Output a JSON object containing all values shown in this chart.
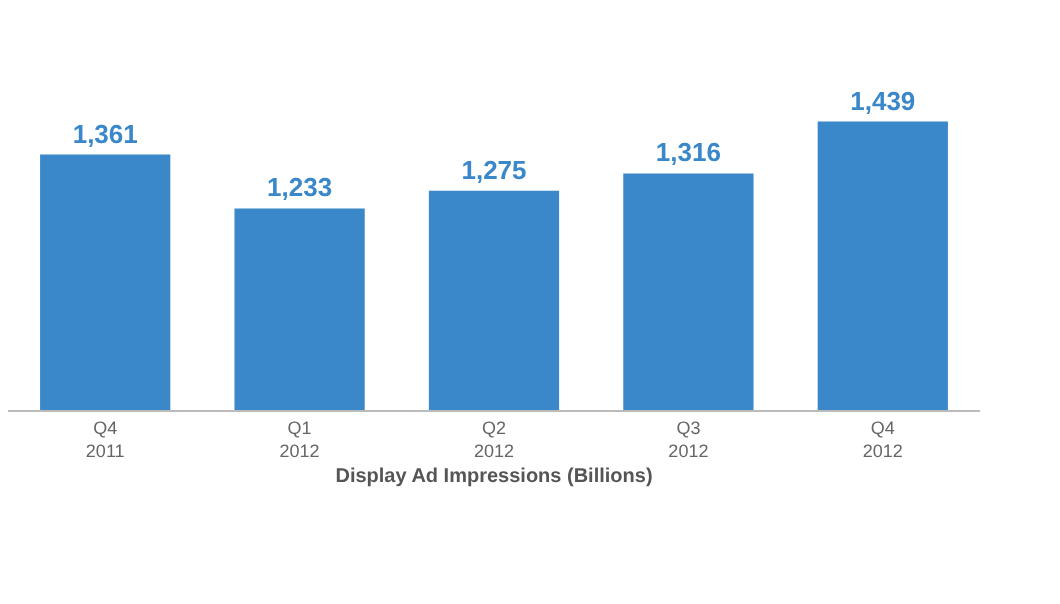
{
  "chart_data": {
    "type": "bar",
    "xlabel": "Display Ad Impressions (Billions)",
    "categories": [
      "Q4\n2011",
      "Q1\n2012",
      "Q2\n2012",
      "Q3\n2012",
      "Q4\n2012"
    ],
    "values": [
      1361,
      1233,
      1275,
      1316,
      1439
    ],
    "value_labels": [
      "1,361",
      "1,233",
      "1,275",
      "1,316",
      "1,439"
    ],
    "color": "#3a88c9"
  }
}
